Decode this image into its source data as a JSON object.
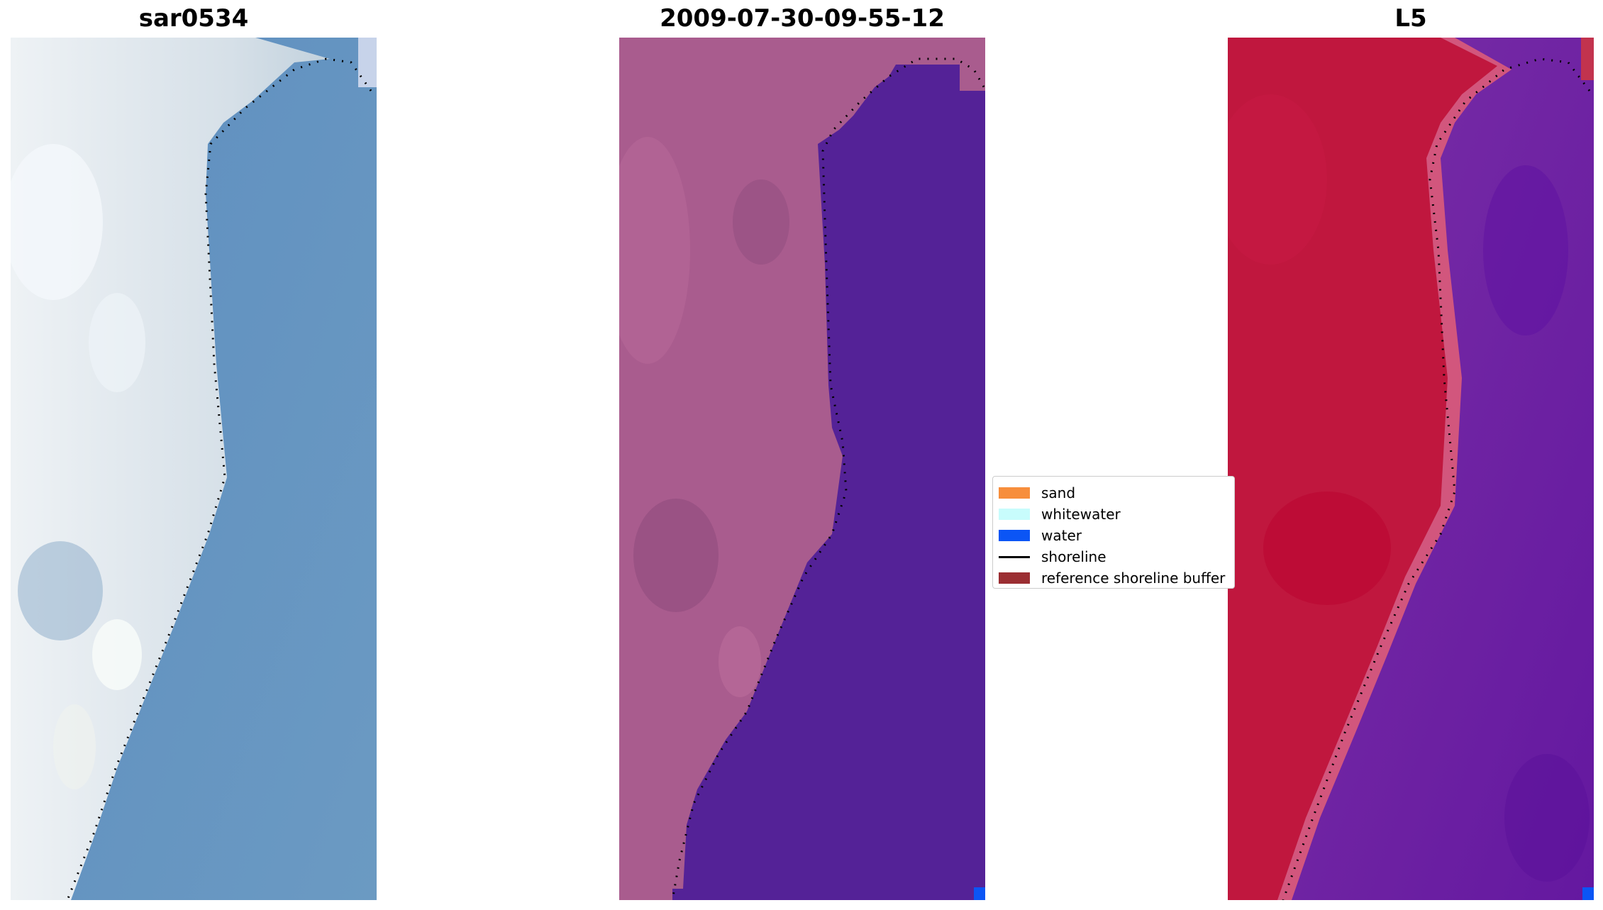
{
  "panels": [
    {
      "title": "sar0534"
    },
    {
      "title": "2009-07-30-09-55-12"
    },
    {
      "title": "L5"
    }
  ],
  "legend": {
    "items": [
      {
        "label": "sand",
        "color": "#f78e3c",
        "kind": "swatch"
      },
      {
        "label": "whitewater",
        "color": "#c8fcfc",
        "kind": "swatch"
      },
      {
        "label": "water",
        "color": "#0b55f5",
        "kind": "swatch"
      },
      {
        "label": "shoreline",
        "color": "#000000",
        "kind": "line"
      },
      {
        "label": "reference shoreline buffer",
        "color": "#9b2e32",
        "kind": "swatch"
      }
    ]
  },
  "colors": {
    "rgb_land": "#d2dde6",
    "rgb_water": "#6792be",
    "classified_land": "#a95c8e",
    "classified_water": "#542297",
    "index_land": "#c0173e",
    "index_water": "#6d1fa0"
  }
}
